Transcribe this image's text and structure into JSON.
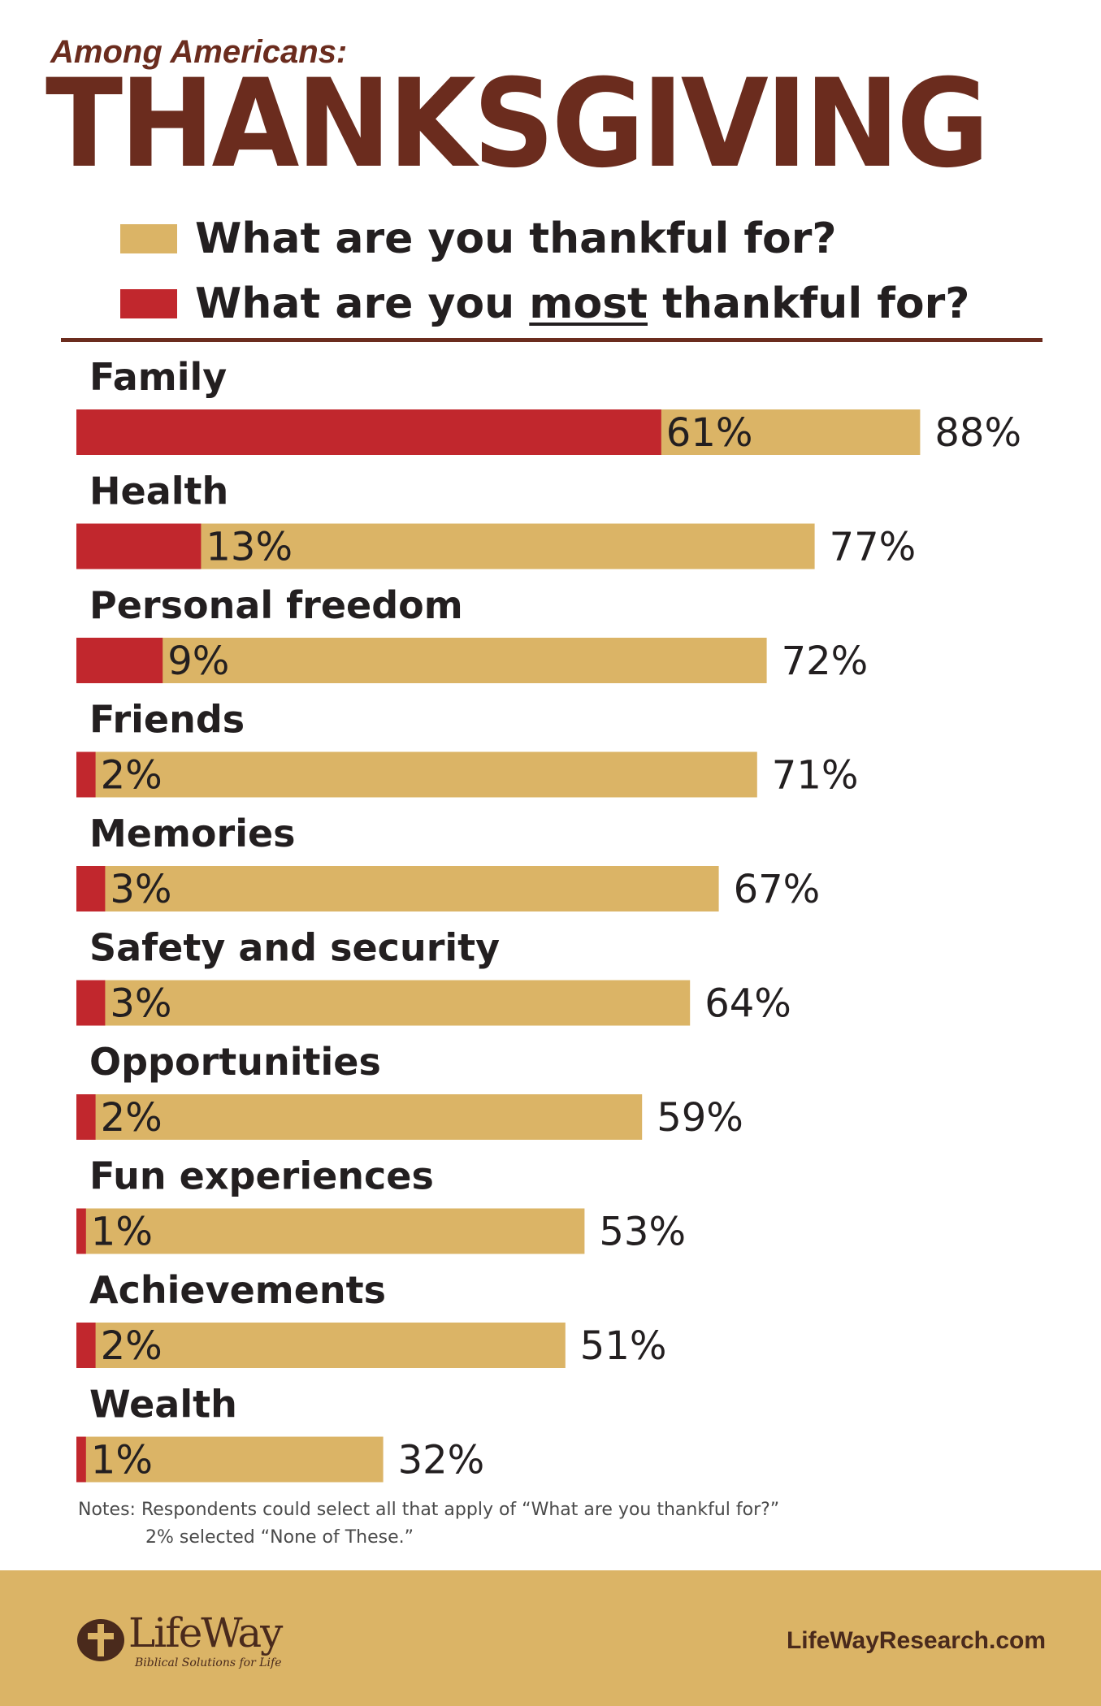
{
  "header": {
    "kicker": "Among Americans:",
    "title": "THANKSGIVING",
    "legend": [
      {
        "text": "What are you thankful for?",
        "color": "#dbb466"
      },
      {
        "pre": "What are you ",
        "emph": "most",
        "post": " thankful for?",
        "color": "#c1272d"
      }
    ]
  },
  "chart_data": {
    "type": "bar",
    "orientation": "horizontal",
    "title": "THANKSGIVING",
    "categories": [
      "Family",
      "Health",
      "Personal freedom",
      "Friends",
      "Memories",
      "Safety and security",
      "Opportunities",
      "Fun experiences",
      "Achievements",
      "Wealth"
    ],
    "series": [
      {
        "name": "What are you thankful for?",
        "color": "#dbb466",
        "values": [
          88,
          77,
          72,
          71,
          67,
          64,
          59,
          53,
          51,
          32
        ]
      },
      {
        "name": "What are you most thankful for?",
        "color": "#c1272d",
        "values": [
          61,
          13,
          9,
          2,
          3,
          3,
          2,
          1,
          2,
          1
        ]
      }
    ],
    "unit": "%",
    "xlim": [
      0,
      100
    ],
    "grid": false,
    "legend": "top-left"
  },
  "notes": {
    "line1": "Notes: Respondents could select all that apply of “What are you thankful for?”",
    "line2": "2% selected “None of These.”"
  },
  "footer": {
    "logo_name": "LifeWay",
    "logo_tagline": "Biblical Solutions for Life",
    "site": "LifeWayResearch.com"
  }
}
